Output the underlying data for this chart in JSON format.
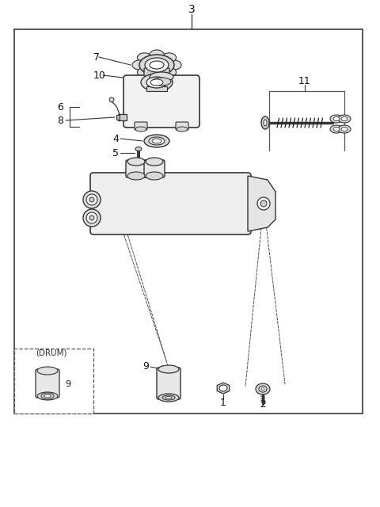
{
  "bg_color": "#ffffff",
  "line_color": "#333333",
  "gray1": "#cccccc",
  "gray2": "#e8e8e8",
  "gray3": "#aaaaaa",
  "border_color": "#555555"
}
